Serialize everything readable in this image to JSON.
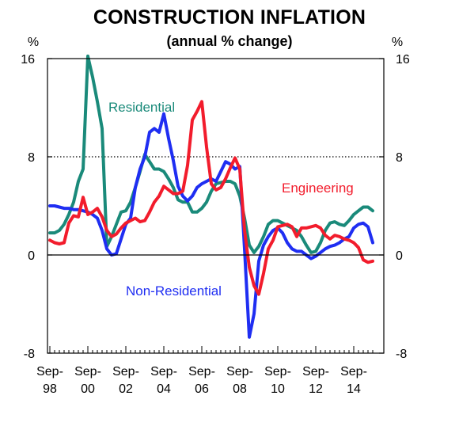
{
  "chart_data": {
    "type": "line",
    "title": "CONSTRUCTION INFLATION",
    "subtitle": "(annual % change)",
    "ylabel_left": "%",
    "ylabel_right": "%",
    "ylim": [
      -8,
      16
    ],
    "y_ticks": [
      "16",
      "8",
      "0",
      "-8"
    ],
    "x_tick_labels": [
      {
        "top": "Sep-",
        "bottom": "98"
      },
      {
        "top": "Sep-",
        "bottom": "00"
      },
      {
        "top": "Sep-",
        "bottom": "02"
      },
      {
        "top": "Sep-",
        "bottom": "04"
      },
      {
        "top": "Sep-",
        "bottom": "06"
      },
      {
        "top": "Sep-",
        "bottom": "08"
      },
      {
        "top": "Sep-",
        "bottom": "10"
      },
      {
        "top": "Sep-",
        "bottom": "12"
      },
      {
        "top": "Sep-",
        "bottom": "14"
      }
    ],
    "reference_line": {
      "y": 8,
      "style": "dotted"
    },
    "grid": false,
    "x_range": [
      "1998-09",
      "2015-12"
    ],
    "series": [
      {
        "name": "Residential",
        "color": "#1a8a7a",
        "points": [
          [
            "1998-09",
            1.8
          ],
          [
            "1998-12",
            1.8
          ],
          [
            "1999-03",
            2.0
          ],
          [
            "1999-06",
            2.5
          ],
          [
            "1999-09",
            3.3
          ],
          [
            "1999-12",
            4.3
          ],
          [
            "2000-03",
            6.0
          ],
          [
            "2000-06",
            7.0
          ],
          [
            "2000-09",
            16.2
          ],
          [
            "2000-12",
            14.5
          ],
          [
            "2001-03",
            12.5
          ],
          [
            "2001-06",
            10.3
          ],
          [
            "2001-09",
            0.7
          ],
          [
            "2001-12",
            1.5
          ],
          [
            "2002-03",
            2.5
          ],
          [
            "2002-06",
            3.5
          ],
          [
            "2002-09",
            3.6
          ],
          [
            "2002-12",
            4.3
          ],
          [
            "2003-03",
            5.5
          ],
          [
            "2003-06",
            6.8
          ],
          [
            "2003-09",
            8.2
          ],
          [
            "2003-12",
            7.6
          ],
          [
            "2004-03",
            7.0
          ],
          [
            "2004-06",
            7.0
          ],
          [
            "2004-09",
            6.8
          ],
          [
            "2004-12",
            6.2
          ],
          [
            "2005-03",
            5.5
          ],
          [
            "2005-06",
            4.5
          ],
          [
            "2005-09",
            4.3
          ],
          [
            "2005-12",
            4.3
          ],
          [
            "2006-03",
            3.5
          ],
          [
            "2006-06",
            3.5
          ],
          [
            "2006-09",
            3.8
          ],
          [
            "2006-12",
            4.3
          ],
          [
            "2007-03",
            5.2
          ],
          [
            "2007-06",
            5.8
          ],
          [
            "2007-09",
            5.9
          ],
          [
            "2007-12",
            6.0
          ],
          [
            "2008-03",
            6.0
          ],
          [
            "2008-06",
            5.8
          ],
          [
            "2008-09",
            4.8
          ],
          [
            "2008-12",
            3.0
          ],
          [
            "2009-03",
            0.8
          ],
          [
            "2009-06",
            0.2
          ],
          [
            "2009-09",
            0.7
          ],
          [
            "2009-12",
            1.5
          ],
          [
            "2010-03",
            2.5
          ],
          [
            "2010-06",
            2.8
          ],
          [
            "2010-09",
            2.8
          ],
          [
            "2010-12",
            2.6
          ],
          [
            "2011-03",
            2.4
          ],
          [
            "2011-06",
            2.2
          ],
          [
            "2011-09",
            2.0
          ],
          [
            "2011-12",
            1.5
          ],
          [
            "2012-03",
            0.8
          ],
          [
            "2012-06",
            0.2
          ],
          [
            "2012-09",
            0.3
          ],
          [
            "2012-12",
            1.0
          ],
          [
            "2013-03",
            2.0
          ],
          [
            "2013-06",
            2.6
          ],
          [
            "2013-09",
            2.7
          ],
          [
            "2013-12",
            2.5
          ],
          [
            "2014-03",
            2.4
          ],
          [
            "2014-06",
            2.8
          ],
          [
            "2014-09",
            3.3
          ],
          [
            "2014-12",
            3.6
          ],
          [
            "2015-03",
            3.9
          ],
          [
            "2015-06",
            3.9
          ],
          [
            "2015-09",
            3.6
          ]
        ]
      },
      {
        "name": "Non-Residential",
        "color": "#1f2ef2",
        "points": [
          [
            "1998-09",
            4.0
          ],
          [
            "1998-12",
            4.0
          ],
          [
            "1999-03",
            3.9
          ],
          [
            "1999-06",
            3.8
          ],
          [
            "1999-09",
            3.8
          ],
          [
            "1999-12",
            3.7
          ],
          [
            "2000-03",
            3.7
          ],
          [
            "2000-06",
            3.6
          ],
          [
            "2000-09",
            3.5
          ],
          [
            "2000-12",
            3.3
          ],
          [
            "2001-03",
            3.0
          ],
          [
            "2001-06",
            2.0
          ],
          [
            "2001-09",
            0.5
          ],
          [
            "2001-12",
            0.0
          ],
          [
            "2002-03",
            0.1
          ],
          [
            "2002-06",
            1.3
          ],
          [
            "2002-09",
            2.5
          ],
          [
            "2002-12",
            3.0
          ],
          [
            "2003-03",
            5.5
          ],
          [
            "2003-06",
            7.0
          ],
          [
            "2003-09",
            8.0
          ],
          [
            "2003-12",
            10.0
          ],
          [
            "2004-03",
            10.3
          ],
          [
            "2004-06",
            10.0
          ],
          [
            "2004-09",
            11.5
          ],
          [
            "2004-12",
            9.5
          ],
          [
            "2005-03",
            7.7
          ],
          [
            "2005-06",
            5.6
          ],
          [
            "2005-09",
            4.8
          ],
          [
            "2005-12",
            4.4
          ],
          [
            "2006-03",
            4.8
          ],
          [
            "2006-06",
            5.5
          ],
          [
            "2006-09",
            5.8
          ],
          [
            "2006-12",
            6.0
          ],
          [
            "2007-03",
            6.2
          ],
          [
            "2007-06",
            6.0
          ],
          [
            "2007-09",
            6.8
          ],
          [
            "2007-12",
            7.6
          ],
          [
            "2008-03",
            7.4
          ],
          [
            "2008-06",
            7.0
          ],
          [
            "2008-09",
            7.2
          ],
          [
            "2008-12",
            0.5
          ],
          [
            "2009-03",
            -6.7
          ],
          [
            "2009-06",
            -4.8
          ],
          [
            "2009-09",
            -0.5
          ],
          [
            "2009-12",
            0.8
          ],
          [
            "2010-03",
            1.5
          ],
          [
            "2010-06",
            2.0
          ],
          [
            "2010-09",
            2.2
          ],
          [
            "2010-12",
            1.8
          ],
          [
            "2011-03",
            1.0
          ],
          [
            "2011-06",
            0.5
          ],
          [
            "2011-09",
            0.3
          ],
          [
            "2011-12",
            0.3
          ],
          [
            "2012-03",
            0.0
          ],
          [
            "2012-06",
            -0.3
          ],
          [
            "2012-09",
            -0.1
          ],
          [
            "2012-12",
            0.2
          ],
          [
            "2013-03",
            0.5
          ],
          [
            "2013-06",
            0.7
          ],
          [
            "2013-09",
            0.8
          ],
          [
            "2013-12",
            1.0
          ],
          [
            "2014-03",
            1.3
          ],
          [
            "2014-06",
            1.5
          ],
          [
            "2014-09",
            2.2
          ],
          [
            "2014-12",
            2.5
          ],
          [
            "2015-03",
            2.6
          ],
          [
            "2015-06",
            2.3
          ],
          [
            "2015-09",
            1.0
          ]
        ]
      },
      {
        "name": "Engineering",
        "color": "#f21c2c",
        "points": [
          [
            "1998-09",
            1.2
          ],
          [
            "1998-12",
            1.0
          ],
          [
            "1999-03",
            0.9
          ],
          [
            "1999-06",
            1.0
          ],
          [
            "1999-09",
            2.6
          ],
          [
            "1999-12",
            3.2
          ],
          [
            "2000-03",
            3.1
          ],
          [
            "2000-06",
            4.7
          ],
          [
            "2000-09",
            3.3
          ],
          [
            "2000-12",
            3.5
          ],
          [
            "2001-03",
            3.8
          ],
          [
            "2001-06",
            3.1
          ],
          [
            "2001-09",
            2.0
          ],
          [
            "2001-12",
            1.5
          ],
          [
            "2002-03",
            1.7
          ],
          [
            "2002-06",
            2.2
          ],
          [
            "2002-09",
            2.6
          ],
          [
            "2002-12",
            2.8
          ],
          [
            "2003-03",
            3.0
          ],
          [
            "2003-06",
            2.7
          ],
          [
            "2003-09",
            2.8
          ],
          [
            "2003-12",
            3.5
          ],
          [
            "2004-03",
            4.3
          ],
          [
            "2004-06",
            4.8
          ],
          [
            "2004-09",
            5.6
          ],
          [
            "2004-12",
            5.3
          ],
          [
            "2005-03",
            5.0
          ],
          [
            "2005-06",
            5.0
          ],
          [
            "2005-09",
            5.2
          ],
          [
            "2005-12",
            7.3
          ],
          [
            "2006-03",
            11.0
          ],
          [
            "2006-06",
            11.7
          ],
          [
            "2006-09",
            12.5
          ],
          [
            "2006-12",
            8.8
          ],
          [
            "2007-03",
            5.8
          ],
          [
            "2007-06",
            5.3
          ],
          [
            "2007-09",
            5.5
          ],
          [
            "2007-12",
            6.2
          ],
          [
            "2008-03",
            7.1
          ],
          [
            "2008-06",
            7.9
          ],
          [
            "2008-09",
            7.0
          ],
          [
            "2008-12",
            2.0
          ],
          [
            "2009-03",
            -1.0
          ],
          [
            "2009-06",
            -2.5
          ],
          [
            "2009-09",
            -3.2
          ],
          [
            "2009-12",
            -1.5
          ],
          [
            "2010-03",
            0.5
          ],
          [
            "2010-06",
            1.2
          ],
          [
            "2010-09",
            2.3
          ],
          [
            "2010-12",
            2.4
          ],
          [
            "2011-03",
            2.5
          ],
          [
            "2011-06",
            2.3
          ],
          [
            "2011-09",
            1.5
          ],
          [
            "2011-12",
            2.2
          ],
          [
            "2012-03",
            2.2
          ],
          [
            "2012-06",
            2.3
          ],
          [
            "2012-09",
            2.4
          ],
          [
            "2012-12",
            2.2
          ],
          [
            "2013-03",
            1.6
          ],
          [
            "2013-06",
            1.3
          ],
          [
            "2013-09",
            1.6
          ],
          [
            "2013-12",
            1.5
          ],
          [
            "2014-03",
            1.3
          ],
          [
            "2014-06",
            1.2
          ],
          [
            "2014-09",
            1.0
          ],
          [
            "2014-12",
            0.6
          ],
          [
            "2015-03",
            -0.4
          ],
          [
            "2015-06",
            -0.6
          ],
          [
            "2015-09",
            -0.5
          ]
        ]
      }
    ]
  }
}
